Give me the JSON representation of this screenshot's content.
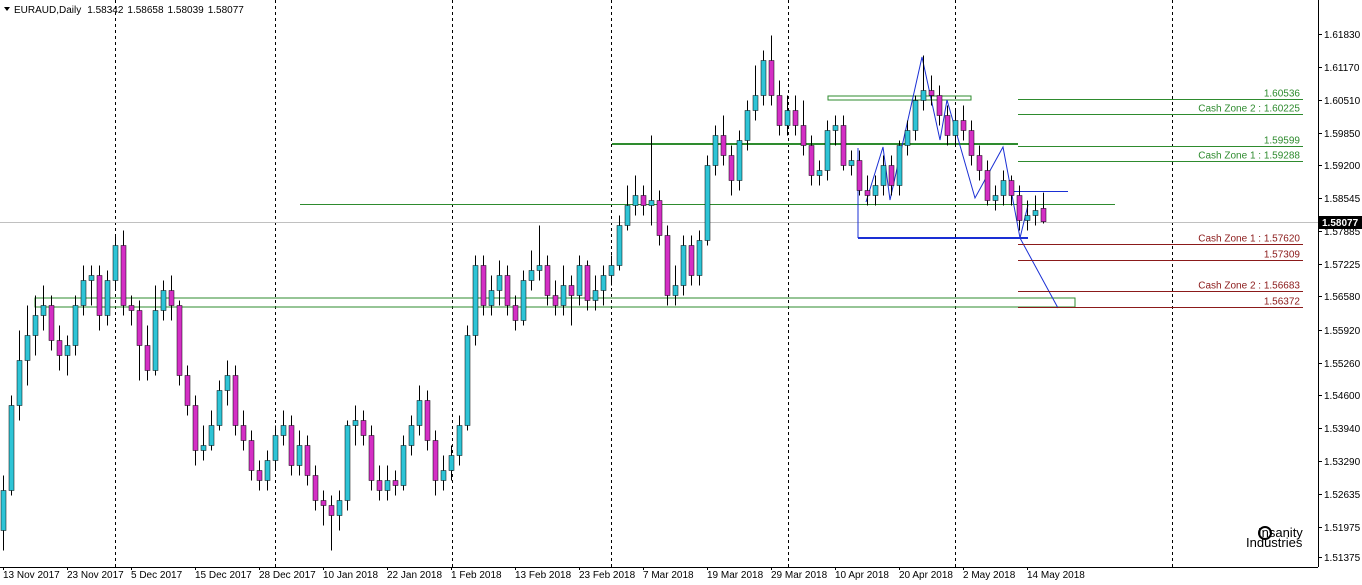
{
  "chart_data": {
    "type": "candlestick",
    "title": "EURAUD,Daily",
    "up_color": "#2ec4d6",
    "down_color": "#d42fc5",
    "wick_color": "#000000",
    "ylim": [
      1.5117,
      1.6251
    ],
    "yticks": [
      {
        "value": 1.6183,
        "label": "1.61830"
      },
      {
        "value": 1.6117,
        "label": "1.61170"
      },
      {
        "value": 1.6051,
        "label": "1.60510"
      },
      {
        "value": 1.5985,
        "label": "1.59850"
      },
      {
        "value": 1.592,
        "label": "1.59200"
      },
      {
        "value": 1.58545,
        "label": "1.58545"
      },
      {
        "value": 1.57885,
        "label": "1.57885"
      },
      {
        "value": 1.57225,
        "label": "1.57225"
      },
      {
        "value": 1.5658,
        "label": "1.56580"
      },
      {
        "value": 1.5592,
        "label": "1.55920"
      },
      {
        "value": 1.5526,
        "label": "1.55260"
      },
      {
        "value": 1.546,
        "label": "1.54600"
      },
      {
        "value": 1.5394,
        "label": "1.53940"
      },
      {
        "value": 1.5329,
        "label": "1.53290"
      },
      {
        "value": 1.52635,
        "label": "1.52635"
      },
      {
        "value": 1.51975,
        "label": "1.51975"
      },
      {
        "value": 1.51375,
        "label": "1.51375"
      }
    ],
    "categories": [
      "13 Nov 2017",
      null,
      null,
      null,
      null,
      null,
      null,
      null,
      "23 Nov 2017",
      null,
      null,
      null,
      null,
      null,
      null,
      null,
      "5 Dec 2017",
      null,
      null,
      null,
      null,
      null,
      null,
      null,
      "15 Dec 2017",
      null,
      null,
      null,
      null,
      null,
      null,
      null,
      "28 Dec 2017",
      null,
      null,
      null,
      null,
      null,
      null,
      null,
      "10 Jan 2018",
      null,
      null,
      null,
      null,
      null,
      null,
      null,
      "22 Jan 2018",
      null,
      null,
      null,
      null,
      null,
      null,
      null,
      "1 Feb 2018",
      null,
      null,
      null,
      null,
      null,
      null,
      null,
      "13 Feb 2018",
      null,
      null,
      null,
      null,
      null,
      null,
      null,
      "23 Feb 2018",
      null,
      null,
      null,
      null,
      null,
      null,
      null,
      "7 Mar 2018",
      null,
      null,
      null,
      null,
      null,
      null,
      null,
      "19 Mar 2018",
      null,
      null,
      null,
      null,
      null,
      null,
      null,
      "29 Mar 2018",
      null,
      null,
      null,
      null,
      null,
      null,
      null,
      "10 Apr 2018",
      null,
      null,
      null,
      null,
      null,
      null,
      null,
      "20 Apr 2018",
      null,
      null,
      null,
      null,
      null,
      null,
      null,
      "2 May 2018",
      null,
      null,
      null,
      null,
      null,
      null,
      null,
      "14 May 2018",
      null,
      null
    ],
    "candles": [
      [
        1.519,
        1.53,
        1.515,
        1.527
      ],
      [
        1.527,
        1.546,
        1.526,
        1.544
      ],
      [
        1.544,
        1.559,
        1.541,
        1.553
      ],
      [
        1.553,
        1.564,
        1.548,
        1.558
      ],
      [
        1.558,
        1.566,
        1.554,
        1.562
      ],
      [
        1.562,
        1.568,
        1.559,
        1.564
      ],
      [
        1.564,
        1.566,
        1.555,
        1.557
      ],
      [
        1.557,
        1.56,
        1.551,
        1.554
      ],
      [
        1.554,
        1.558,
        1.55,
        1.556
      ],
      [
        1.556,
        1.566,
        1.554,
        1.564
      ],
      [
        1.564,
        1.572,
        1.562,
        1.569
      ],
      [
        1.569,
        1.572,
        1.564,
        1.57
      ],
      [
        1.57,
        1.572,
        1.559,
        1.562
      ],
      [
        1.562,
        1.571,
        1.56,
        1.569
      ],
      [
        1.569,
        1.578,
        1.567,
        1.576
      ],
      [
        1.576,
        1.579,
        1.562,
        1.564
      ],
      [
        1.564,
        1.566,
        1.56,
        1.563
      ],
      [
        1.563,
        1.565,
        1.549,
        1.556
      ],
      [
        1.556,
        1.56,
        1.549,
        1.551
      ],
      [
        1.551,
        1.568,
        1.55,
        1.563
      ],
      [
        1.563,
        1.569,
        1.561,
        1.567
      ],
      [
        1.567,
        1.57,
        1.561,
        1.564
      ],
      [
        1.564,
        1.565,
        1.548,
        1.55
      ],
      [
        1.55,
        1.552,
        1.542,
        1.544
      ],
      [
        1.544,
        1.546,
        1.532,
        1.535
      ],
      [
        1.535,
        1.54,
        1.533,
        1.536
      ],
      [
        1.536,
        1.543,
        1.535,
        1.54
      ],
      [
        1.54,
        1.549,
        1.539,
        1.547
      ],
      [
        1.547,
        1.553,
        1.544,
        1.55
      ],
      [
        1.55,
        1.552,
        1.538,
        1.54
      ],
      [
        1.54,
        1.543,
        1.535,
        1.537
      ],
      [
        1.537,
        1.539,
        1.529,
        1.531
      ],
      [
        1.531,
        1.533,
        1.527,
        1.529
      ],
      [
        1.529,
        1.535,
        1.527,
        1.533
      ],
      [
        1.533,
        1.54,
        1.531,
        1.538
      ],
      [
        1.538,
        1.543,
        1.536,
        1.54
      ],
      [
        1.54,
        1.542,
        1.53,
        1.532
      ],
      [
        1.532,
        1.539,
        1.53,
        1.536
      ],
      [
        1.536,
        1.538,
        1.528,
        1.53
      ],
      [
        1.53,
        1.532,
        1.523,
        1.525
      ],
      [
        1.525,
        1.527,
        1.52,
        1.524
      ],
      [
        1.524,
        1.526,
        1.515,
        1.522
      ],
      [
        1.522,
        1.527,
        1.519,
        1.525
      ],
      [
        1.525,
        1.541,
        1.523,
        1.54
      ],
      [
        1.54,
        1.544,
        1.536,
        1.541
      ],
      [
        1.541,
        1.543,
        1.536,
        1.538
      ],
      [
        1.538,
        1.54,
        1.527,
        1.529
      ],
      [
        1.529,
        1.532,
        1.525,
        1.527
      ],
      [
        1.527,
        1.532,
        1.525,
        1.529
      ],
      [
        1.529,
        1.531,
        1.526,
        1.528
      ],
      [
        1.528,
        1.538,
        1.527,
        1.536
      ],
      [
        1.536,
        1.542,
        1.534,
        1.54
      ],
      [
        1.54,
        1.548,
        1.538,
        1.545
      ],
      [
        1.545,
        1.547,
        1.535,
        1.537
      ],
      [
        1.537,
        1.539,
        1.526,
        1.529
      ],
      [
        1.529,
        1.534,
        1.527,
        1.531
      ],
      [
        1.531,
        1.536,
        1.529,
        1.534
      ],
      [
        1.534,
        1.542,
        1.532,
        1.54
      ],
      [
        1.54,
        1.56,
        1.539,
        1.558
      ],
      [
        1.558,
        1.574,
        1.556,
        1.572
      ],
      [
        1.572,
        1.574,
        1.562,
        1.564
      ],
      [
        1.564,
        1.57,
        1.562,
        1.567
      ],
      [
        1.567,
        1.573,
        1.564,
        1.57
      ],
      [
        1.57,
        1.572,
        1.562,
        1.564
      ],
      [
        1.564,
        1.566,
        1.559,
        1.561
      ],
      [
        1.561,
        1.571,
        1.56,
        1.569
      ],
      [
        1.569,
        1.575,
        1.567,
        1.571
      ],
      [
        1.571,
        1.58,
        1.569,
        1.572
      ],
      [
        1.572,
        1.574,
        1.564,
        1.566
      ],
      [
        1.566,
        1.569,
        1.562,
        1.564
      ],
      [
        1.564,
        1.572,
        1.562,
        1.568
      ],
      [
        1.568,
        1.57,
        1.56,
        1.566
      ],
      [
        1.566,
        1.574,
        1.564,
        1.572
      ],
      [
        1.572,
        1.573,
        1.563,
        1.565
      ],
      [
        1.565,
        1.57,
        1.563,
        1.567
      ],
      [
        1.567,
        1.572,
        1.564,
        1.57
      ],
      [
        1.57,
        1.574,
        1.568,
        1.572
      ],
      [
        1.572,
        1.582,
        1.571,
        1.58
      ],
      [
        1.58,
        1.588,
        1.579,
        1.584
      ],
      [
        1.584,
        1.59,
        1.582,
        1.586
      ],
      [
        1.586,
        1.588,
        1.582,
        1.584
      ],
      [
        1.584,
        1.598,
        1.58,
        1.585
      ],
      [
        1.585,
        1.587,
        1.576,
        1.578
      ],
      [
        1.578,
        1.58,
        1.564,
        1.566
      ],
      [
        1.566,
        1.572,
        1.564,
        1.568
      ],
      [
        1.568,
        1.578,
        1.566,
        1.576
      ],
      [
        1.576,
        1.578,
        1.568,
        1.57
      ],
      [
        1.57,
        1.579,
        1.568,
        1.577
      ],
      [
        1.577,
        1.594,
        1.576,
        1.592
      ],
      [
        1.592,
        1.6,
        1.59,
        1.598
      ],
      [
        1.598,
        1.602,
        1.592,
        1.594
      ],
      [
        1.594,
        1.596,
        1.586,
        1.589
      ],
      [
        1.589,
        1.599,
        1.587,
        1.597
      ],
      [
        1.597,
        1.605,
        1.595,
        1.603
      ],
      [
        1.603,
        1.612,
        1.601,
        1.606
      ],
      [
        1.606,
        1.615,
        1.604,
        1.613
      ],
      [
        1.613,
        1.618,
        1.604,
        1.606
      ],
      [
        1.606,
        1.609,
        1.598,
        1.6
      ],
      [
        1.6,
        1.606,
        1.598,
        1.603
      ],
      [
        1.603,
        1.606,
        1.598,
        1.6
      ],
      [
        1.6,
        1.605,
        1.594,
        1.596
      ],
      [
        1.596,
        1.598,
        1.588,
        1.59
      ],
      [
        1.59,
        1.593,
        1.588,
        1.591
      ],
      [
        1.591,
        1.601,
        1.589,
        1.599
      ],
      [
        1.599,
        1.602,
        1.596,
        1.6
      ],
      [
        1.6,
        1.602,
        1.591,
        1.592
      ],
      [
        1.592,
        1.595,
        1.59,
        1.593
      ],
      [
        1.593,
        1.595,
        1.586,
        1.587
      ],
      [
        1.587,
        1.59,
        1.584,
        1.586
      ],
      [
        1.586,
        1.59,
        1.584,
        1.588
      ],
      [
        1.588,
        1.594,
        1.586,
        1.592
      ],
      [
        1.592,
        1.594,
        1.586,
        1.588
      ],
      [
        1.588,
        1.597,
        1.586,
        1.596
      ],
      [
        1.596,
        1.601,
        1.594,
        1.599
      ],
      [
        1.599,
        1.606,
        1.597,
        1.605
      ],
      [
        1.605,
        1.614,
        1.603,
        1.607
      ],
      [
        1.607,
        1.61,
        1.604,
        1.606
      ],
      [
        1.606,
        1.608,
        1.6,
        1.602
      ],
      [
        1.602,
        1.604,
        1.596,
        1.598
      ],
      [
        1.598,
        1.603,
        1.596,
        1.601
      ],
      [
        1.601,
        1.604,
        1.597,
        1.599
      ],
      [
        1.599,
        1.601,
        1.592,
        1.594
      ],
      [
        1.594,
        1.596,
        1.589,
        1.591
      ],
      [
        1.591,
        1.593,
        1.584,
        1.585
      ],
      [
        1.585,
        1.588,
        1.583,
        1.586
      ],
      [
        1.586,
        1.591,
        1.584,
        1.589
      ],
      [
        1.589,
        1.59,
        1.584,
        1.586
      ],
      [
        1.586,
        1.588,
        1.579,
        1.581
      ],
      [
        1.581,
        1.585,
        1.579,
        1.582
      ],
      [
        1.582,
        1.586,
        1.58,
        1.583
      ],
      [
        1.58342,
        1.58658,
        1.58039,
        1.58077
      ]
    ],
    "levels": [
      {
        "value": 1.60536,
        "color": "#2e8b2e"
      },
      {
        "value": 1.60225,
        "label": "Cash Zone 2 : 1.60225",
        "color": "#2e8b2e"
      },
      {
        "value": 1.59599,
        "color": "#2e8b2e"
      },
      {
        "value": 1.59288,
        "label": "Cash Zone 1 : 1.59288",
        "color": "#2e8b2e"
      },
      {
        "value": 1.5762,
        "label": "Cash Zone 1 : 1.57620",
        "color": "#8b1a1a"
      },
      {
        "value": 1.57309,
        "color": "#8b1a1a"
      },
      {
        "value": 1.56683,
        "label": "Cash Zone 2 : 1.56683",
        "color": "#8b1a1a"
      },
      {
        "value": 1.56372,
        "color": "#8b1a1a"
      }
    ],
    "watermark": [
      "Insanity",
      "Industries"
    ]
  }
}
